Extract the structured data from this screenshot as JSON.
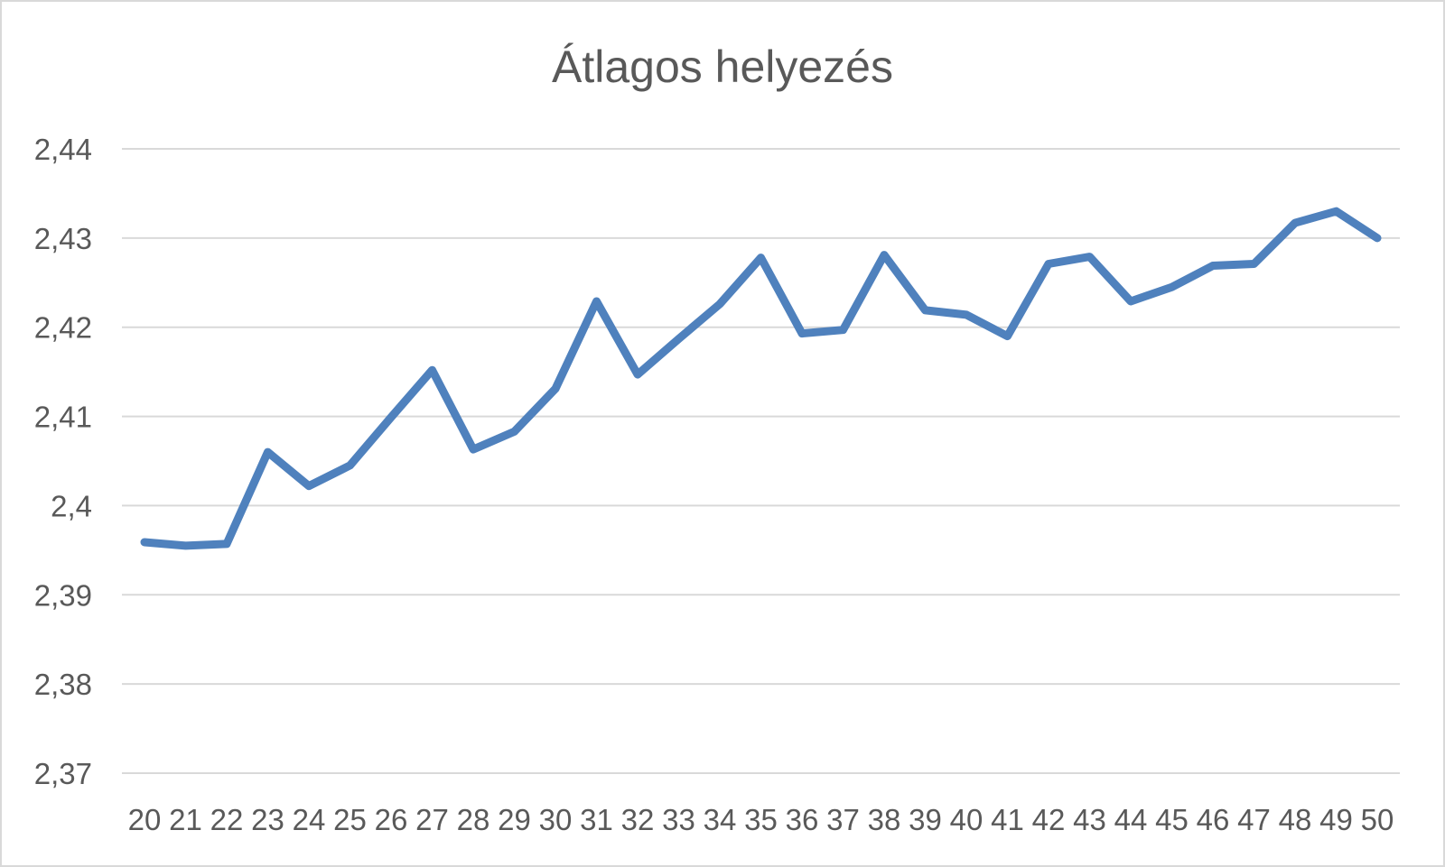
{
  "chart_data": {
    "type": "line",
    "title": "Átlagos helyezés",
    "xlabel": "",
    "ylabel": "",
    "x": [
      "20",
      "21",
      "22",
      "23",
      "24",
      "25",
      "26",
      "27",
      "28",
      "29",
      "30",
      "31",
      "32",
      "33",
      "34",
      "35",
      "36",
      "37",
      "38",
      "39",
      "40",
      "41",
      "42",
      "43",
      "44",
      "45",
      "46",
      "47",
      "48",
      "49",
      "50"
    ],
    "y_ticks": [
      "2,37",
      "2,38",
      "2,39",
      "2,4",
      "2,41",
      "2,42",
      "2,43",
      "2,44"
    ],
    "y_tick_values": [
      2.37,
      2.38,
      2.39,
      2.4,
      2.41,
      2.42,
      2.43,
      2.44
    ],
    "ylim": [
      2.37,
      2.44
    ],
    "grid": true,
    "legend": "none",
    "series": [
      {
        "color": "#4f81bd",
        "values": [
          2.3959,
          2.3955,
          2.3957,
          2.406,
          2.4022,
          2.4045,
          2.4099,
          2.4152,
          2.4063,
          2.4083,
          2.4131,
          2.4229,
          2.4147,
          2.4187,
          2.4226,
          2.4278,
          2.4193,
          2.4197,
          2.4281,
          2.4219,
          2.4214,
          2.419,
          2.4271,
          2.4279,
          2.4229,
          2.4245,
          2.4269,
          2.4271,
          2.4317,
          2.433,
          2.43
        ]
      }
    ]
  }
}
